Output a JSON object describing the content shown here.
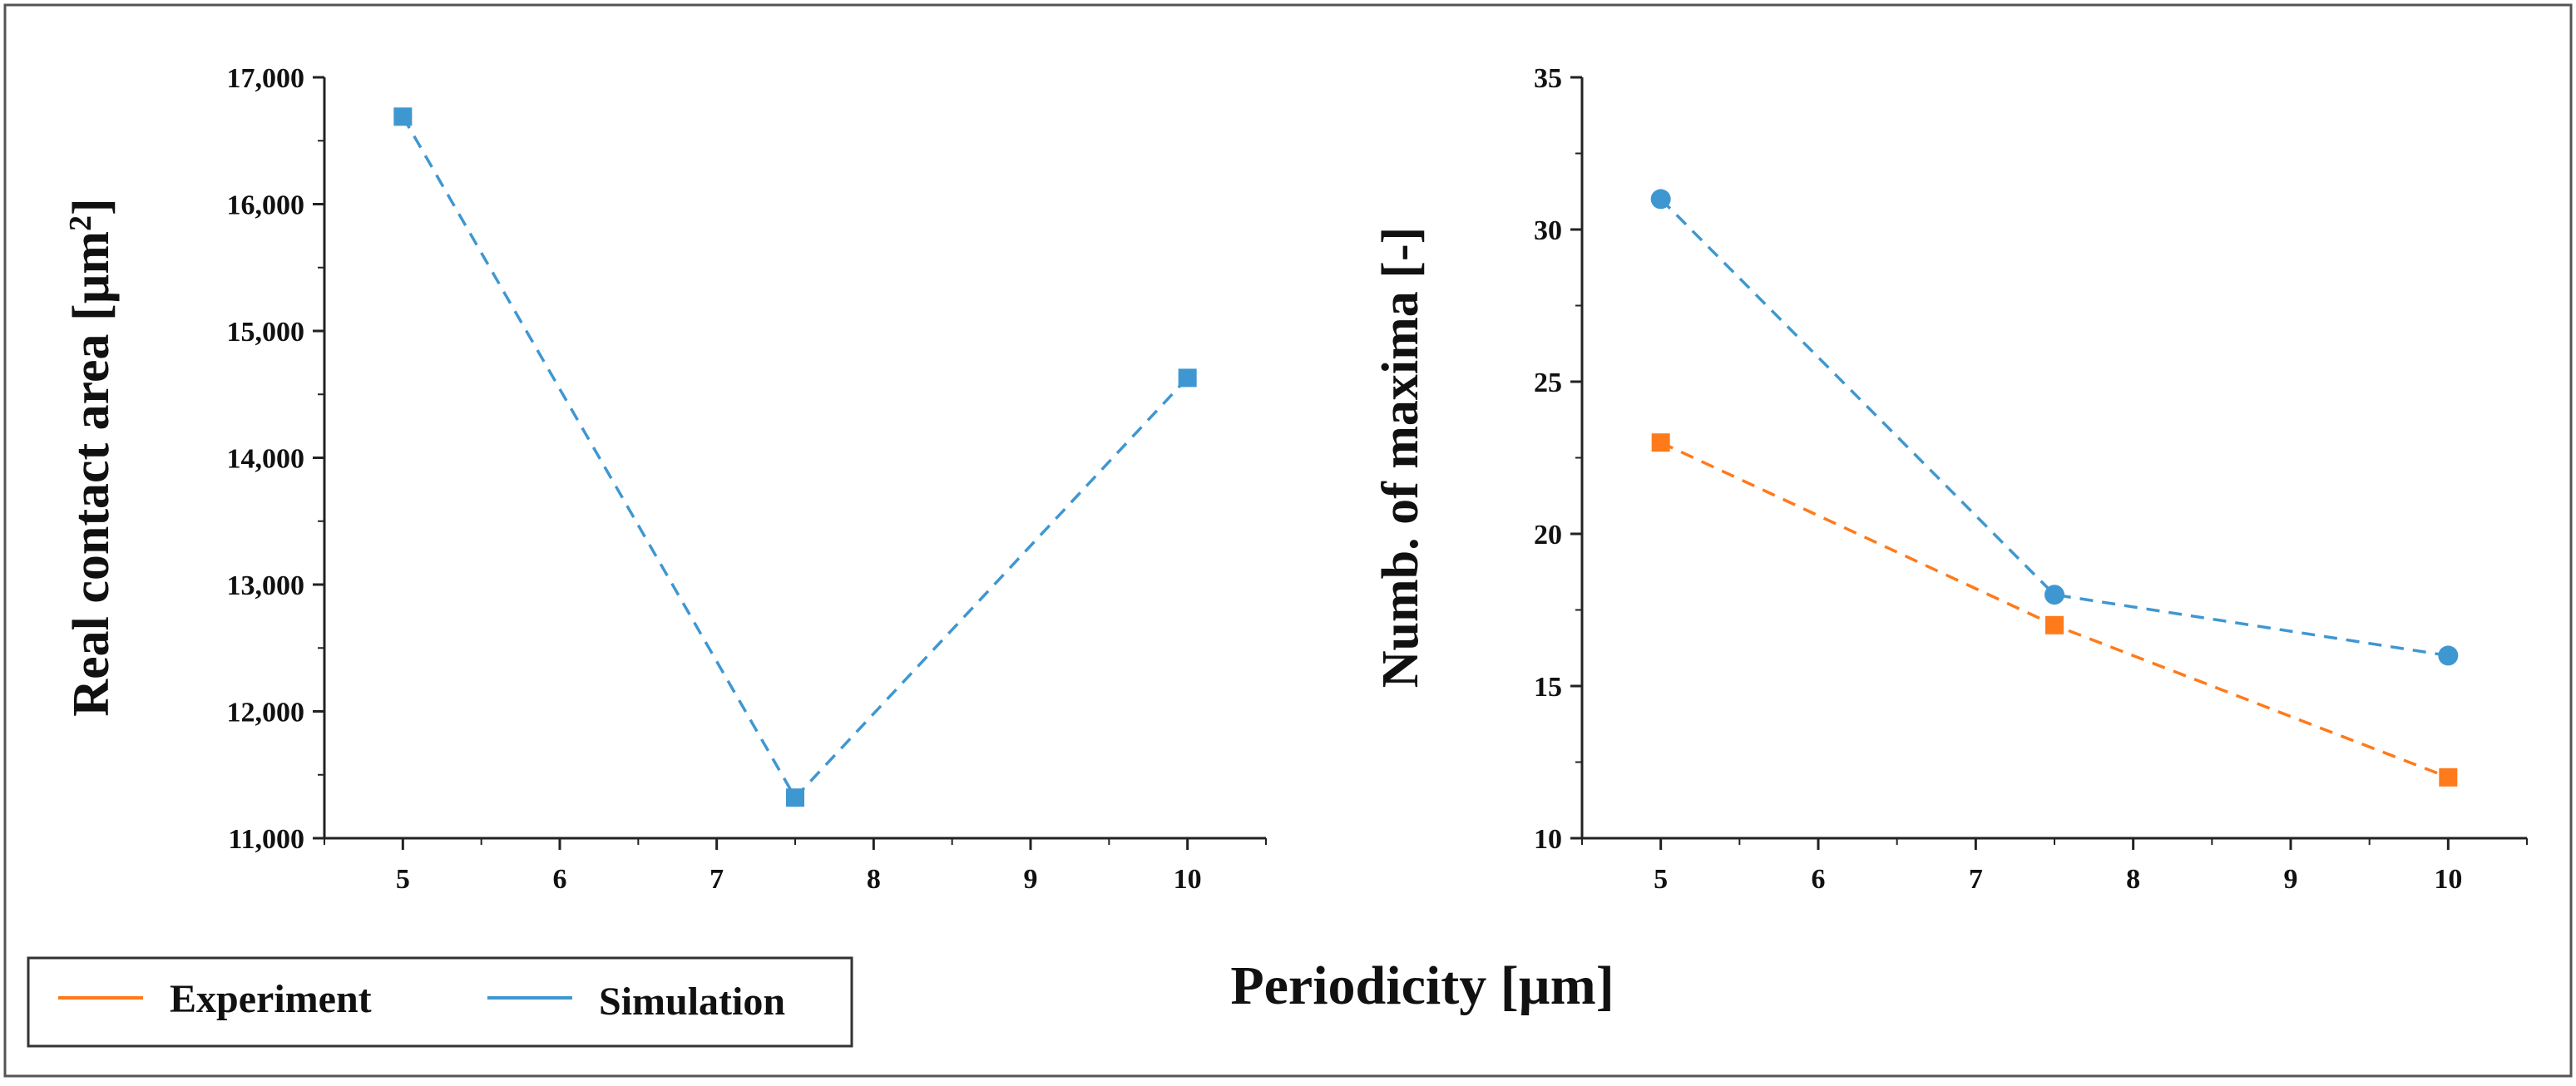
{
  "chart_data": [
    {
      "type": "line",
      "title": "",
      "xlabel": "",
      "ylabel": "Real contact area [µm²]",
      "ylabel_main": "Real contact area [µm",
      "ylabel_sup": "2",
      "ylabel_end": "]",
      "xlim": [
        4.5,
        10.5
      ],
      "ylim": [
        11000,
        17000
      ],
      "xticks": [
        5,
        6,
        7,
        8,
        9,
        10
      ],
      "xtick_labels": [
        "5",
        "6",
        "7",
        "8",
        "9",
        "10"
      ],
      "yticks": [
        11000,
        12000,
        13000,
        14000,
        15000,
        16000,
        17000
      ],
      "ytick_labels": [
        "11,000",
        "12,000",
        "13,000",
        "14,000",
        "15,000",
        "16,000",
        "17,000"
      ],
      "grid": false,
      "series": [
        {
          "name": "Simulation",
          "color": "#3f97d1",
          "marker": "square",
          "linestyle": "dashed",
          "x": [
            5,
            7.5,
            10
          ],
          "y": [
            16690,
            11320,
            14630
          ]
        }
      ]
    },
    {
      "type": "line",
      "title": "",
      "xlabel": "",
      "ylabel": "Numb. of maxima [-]",
      "xlim": [
        4.5,
        10.5
      ],
      "ylim": [
        10,
        35
      ],
      "xticks": [
        5,
        6,
        7,
        8,
        9,
        10
      ],
      "xtick_labels": [
        "5",
        "6",
        "7",
        "8",
        "9",
        "10"
      ],
      "yticks": [
        10,
        15,
        20,
        25,
        30,
        35
      ],
      "ytick_labels": [
        "10",
        "15",
        "20",
        "25",
        "30",
        "35"
      ],
      "grid": false,
      "series": [
        {
          "name": "Simulation",
          "color": "#3f97d1",
          "marker": "circle",
          "linestyle": "dashed",
          "x": [
            5,
            7.5,
            10
          ],
          "y": [
            31,
            18,
            16
          ]
        },
        {
          "name": "Experiment",
          "color": "#ff7a1a",
          "marker": "square",
          "linestyle": "dashed",
          "x": [
            5,
            7.5,
            10
          ],
          "y": [
            23,
            17,
            12
          ]
        }
      ]
    }
  ],
  "shared_xlabel": "Periodicity [µm]",
  "legend": {
    "placement": "bottom-left",
    "entries": [
      {
        "label": "Experiment",
        "color": "#ff7a1a"
      },
      {
        "label": "Simulation",
        "color": "#3f97d1"
      }
    ]
  }
}
